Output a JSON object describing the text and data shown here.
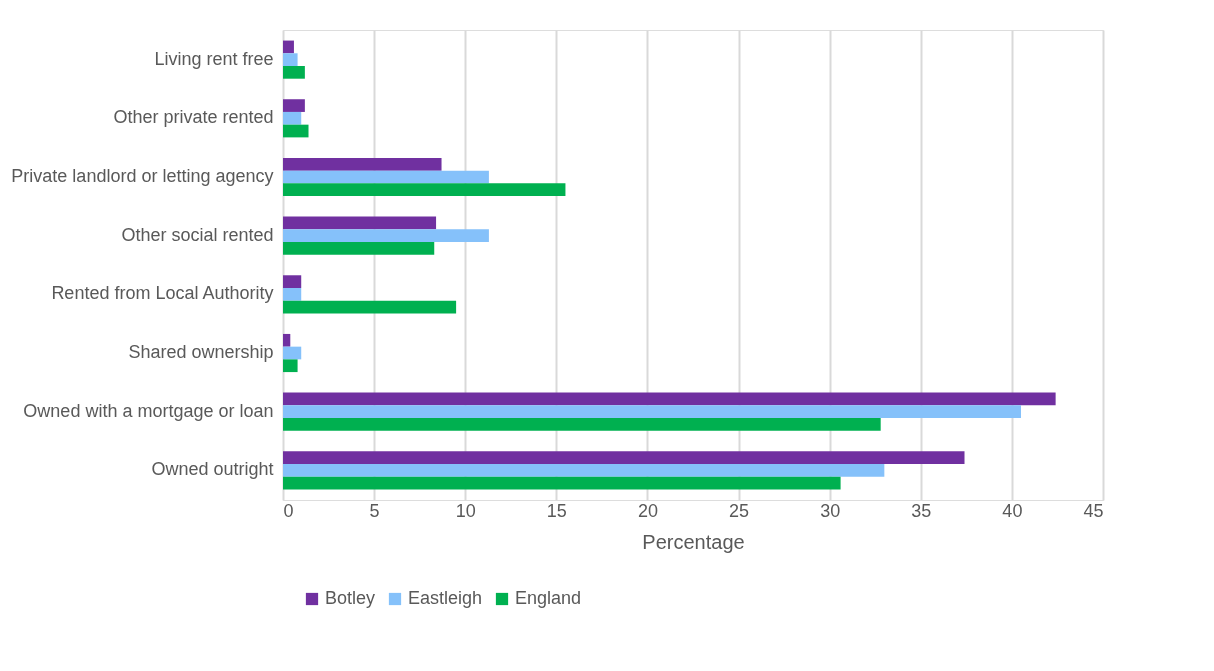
{
  "chart_data": {
    "type": "bar",
    "orientation": "horizontal",
    "xlabel": "Percentage",
    "categories": [
      "Living rent free",
      "Other private rented",
      "Private landlord or letting agency",
      "Other social rented",
      "Rented from Local Authority",
      "Shared ownership",
      "Owned with a mortgage or loan",
      "Owned outright"
    ],
    "series": [
      {
        "name": "Botley",
        "color": "#7030a0",
        "values": [
          0.6,
          1.2,
          8.7,
          8.4,
          1.0,
          0.4,
          42.4,
          37.4
        ]
      },
      {
        "name": "Eastleigh",
        "color": "#85c1fa",
        "values": [
          0.8,
          1.0,
          11.3,
          11.3,
          1.0,
          1.0,
          40.5,
          33.0
        ]
      },
      {
        "name": "England",
        "color": "#00b050",
        "values": [
          1.2,
          1.4,
          15.5,
          8.3,
          9.5,
          0.8,
          32.8,
          30.6
        ]
      }
    ],
    "xlim": [
      0,
      45
    ],
    "xticks": [
      0,
      5,
      10,
      15,
      20,
      25,
      30,
      35,
      40,
      45
    ],
    "grid": "x",
    "legend": "bottom"
  }
}
